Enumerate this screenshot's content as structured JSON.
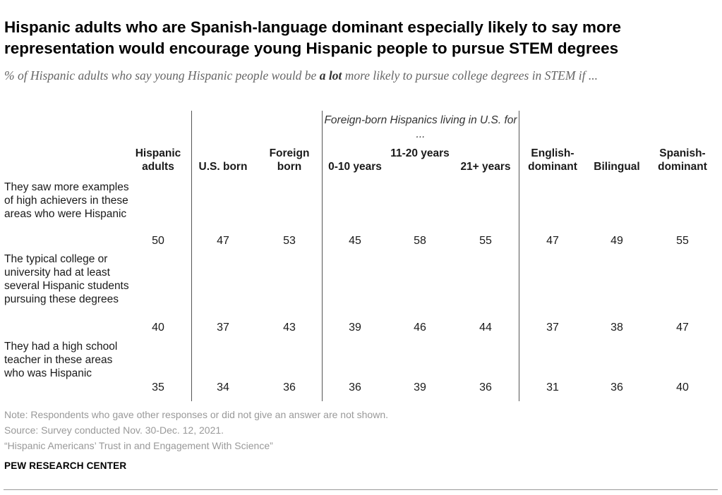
{
  "title": "Hispanic adults who are Spanish-language dominant especially likely to say more representation would encourage young Hispanic people to pursue STEM degrees",
  "subtitle_before": "% of Hispanic adults who say young Hispanic people would be ",
  "subtitle_emphasis": "a lot",
  "subtitle_after": " more likely to pursue college degrees in STEM if ...",
  "chart_data": {
    "type": "table",
    "group_header": "Foreign-born Hispanics living in U.S. for ...",
    "columns": [
      {
        "key": "hispanic_adults",
        "label": "Hispanic adults"
      },
      {
        "key": "us_born",
        "label": "U.S. born"
      },
      {
        "key": "foreign_born",
        "label": "Foreign born"
      },
      {
        "key": "y0_10",
        "label": "0-10 years"
      },
      {
        "key": "y11_20",
        "label": "11-20 years"
      },
      {
        "key": "y21_plus",
        "label": "21+ years"
      },
      {
        "key": "english_dominant",
        "label": "English-dominant"
      },
      {
        "key": "bilingual",
        "label": "Bilingual"
      },
      {
        "key": "spanish_dominant",
        "label": "Spanish-dominant"
      }
    ],
    "rows": [
      {
        "label": "They saw more examples of high achievers in these areas who were Hispanic",
        "values": [
          50,
          47,
          53,
          45,
          58,
          55,
          47,
          49,
          55
        ]
      },
      {
        "label": "The typical college or university had at least several Hispanic students pursuing these degrees",
        "values": [
          40,
          37,
          43,
          39,
          46,
          44,
          37,
          38,
          47
        ]
      },
      {
        "label": "They had a high school teacher in these areas who was Hispanic",
        "values": [
          35,
          34,
          36,
          36,
          39,
          36,
          31,
          36,
          40
        ]
      }
    ]
  },
  "notes": {
    "note": "Note: Respondents who gave other responses or did not give an answer are not shown.",
    "source": "Source: Survey conducted Nov. 30-Dec. 12, 2021.",
    "report": "“Hispanic Americans’ Trust in and Engagement With Science”",
    "brand": "PEW RESEARCH CENTER"
  }
}
